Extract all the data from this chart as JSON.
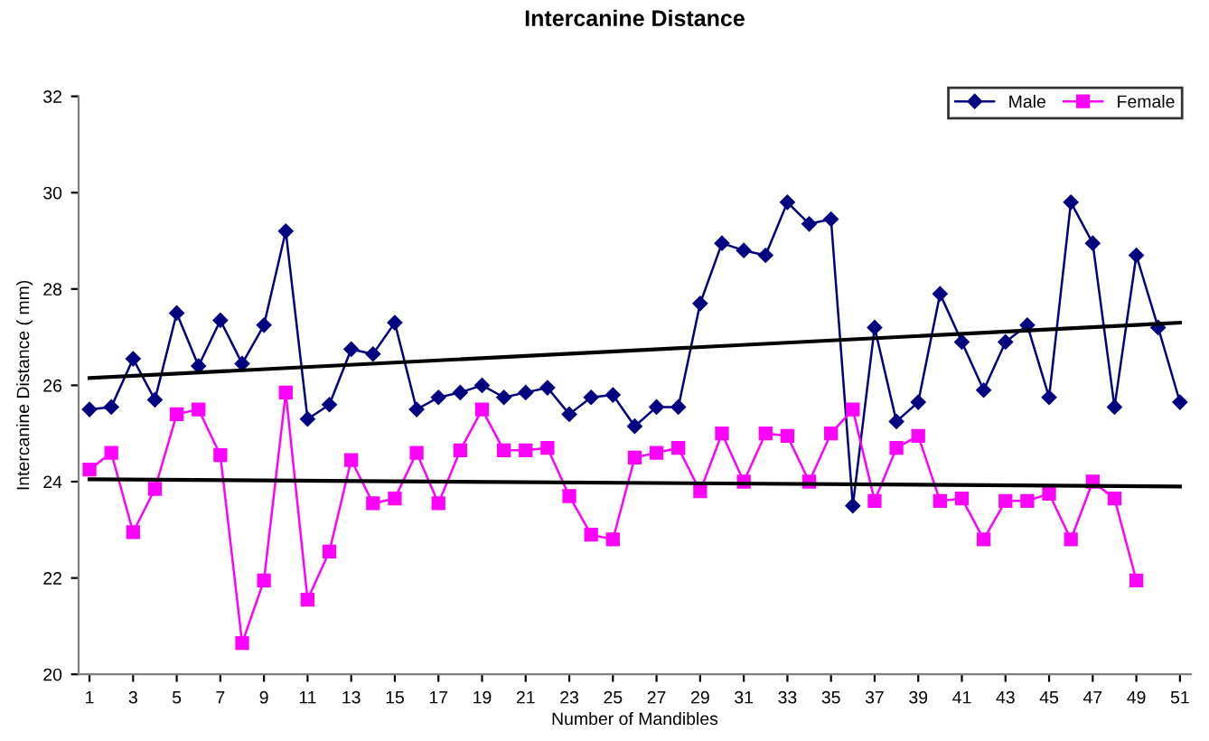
{
  "chart_data": {
    "type": "line",
    "title": "Intercanine Distance",
    "xlabel": "Number of Mandibles",
    "ylabel": "Intercanine Distance ( mm)",
    "xlim": [
      0.5,
      51.5
    ],
    "xticks": [
      1,
      3,
      5,
      7,
      9,
      11,
      13,
      15,
      17,
      19,
      21,
      23,
      25,
      27,
      29,
      31,
      33,
      35,
      37,
      39,
      41,
      43,
      45,
      47,
      49,
      51
    ],
    "ylim": [
      20,
      32
    ],
    "yticks": [
      20,
      22,
      24,
      26,
      28,
      30,
      32
    ],
    "grid": false,
    "legend": "top right",
    "series": [
      {
        "name": "Male",
        "color": "#000080",
        "marker": "diamond",
        "x": [
          1,
          2,
          3,
          4,
          5,
          6,
          7,
          8,
          9,
          10,
          11,
          12,
          13,
          14,
          15,
          16,
          17,
          18,
          19,
          20,
          21,
          22,
          23,
          24,
          25,
          26,
          27,
          28,
          29,
          30,
          31,
          32,
          33,
          34,
          35,
          36,
          37,
          38,
          39,
          40,
          41,
          42,
          43,
          44,
          45,
          46,
          47,
          48,
          49,
          50,
          51
        ],
        "values": [
          25.5,
          25.55,
          26.55,
          25.7,
          27.5,
          26.4,
          27.35,
          26.45,
          27.25,
          29.2,
          25.3,
          25.6,
          26.75,
          26.65,
          27.3,
          25.5,
          25.75,
          25.85,
          26.0,
          25.75,
          25.85,
          25.95,
          25.4,
          25.75,
          25.8,
          25.15,
          25.55,
          25.55,
          27.7,
          28.95,
          28.8,
          28.7,
          29.8,
          29.35,
          29.45,
          23.5,
          27.2,
          25.25,
          25.65,
          27.9,
          26.9,
          25.9,
          26.9,
          27.25,
          25.75,
          29.8,
          28.95,
          25.55,
          28.7,
          27.2,
          25.65
        ]
      },
      {
        "name": "Female",
        "color": "#ff00ff",
        "marker": "square",
        "x": [
          1,
          2,
          3,
          4,
          5,
          6,
          7,
          8,
          9,
          10,
          11,
          12,
          13,
          14,
          15,
          16,
          17,
          18,
          19,
          20,
          21,
          22,
          23,
          24,
          25,
          26,
          27,
          28,
          29,
          30,
          31,
          32,
          33,
          34,
          35,
          36,
          37,
          38,
          39,
          40,
          41,
          42,
          43,
          44,
          45,
          46,
          47,
          48,
          49
        ],
        "values": [
          24.25,
          24.6,
          22.95,
          23.85,
          25.4,
          25.5,
          24.55,
          20.65,
          21.95,
          25.85,
          21.55,
          22.55,
          24.45,
          23.55,
          23.65,
          24.6,
          23.55,
          24.65,
          25.5,
          24.65,
          24.65,
          24.7,
          23.7,
          22.9,
          22.8,
          24.5,
          24.6,
          24.7,
          23.8,
          25.0,
          24.0,
          25.0,
          24.95,
          24.0,
          25.0,
          25.5,
          23.6,
          24.7,
          24.95,
          23.6,
          23.65,
          22.8,
          23.6,
          23.6,
          23.75,
          22.8,
          24.0,
          23.65,
          21.95
        ]
      },
      {
        "color": "#000000",
        "marker": "none",
        "x": [
          1,
          51
        ],
        "values": [
          26.15,
          27.3
        ]
      },
      {
        "color": "#000000",
        "marker": "none",
        "x": [
          1,
          51
        ],
        "values": [
          24.05,
          23.9
        ]
      }
    ]
  }
}
